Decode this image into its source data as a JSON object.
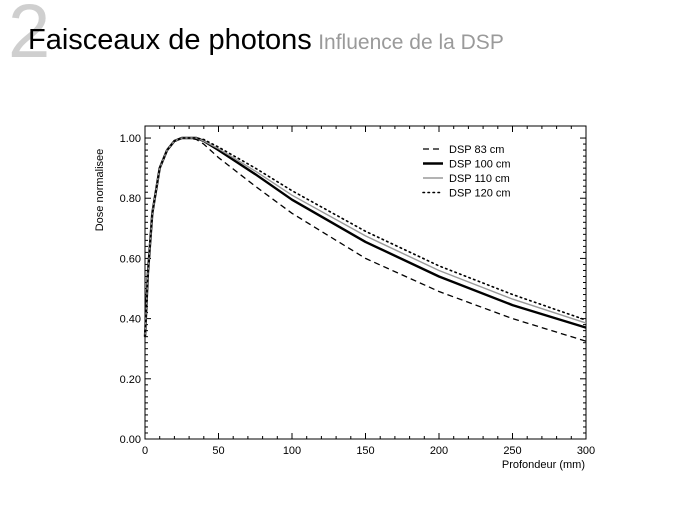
{
  "slide": {
    "number": "2",
    "title": "Faisceaux de photons",
    "subtitle": "Influence de la DSP"
  },
  "chart_data": {
    "type": "line",
    "xlabel": "Profondeur (mm)",
    "ylabel": "Dose normalisee",
    "xlim": [
      0,
      300
    ],
    "ylim": [
      0,
      1.04
    ],
    "x_ticks": [
      "0",
      "50",
      "100",
      "150",
      "200",
      "250",
      "300"
    ],
    "y_ticks": [
      "0.00",
      "0.20",
      "0.40",
      "0.60",
      "0.80",
      "1.00"
    ],
    "grid": false,
    "legend_position": "top-right",
    "series": [
      {
        "name": "DSP 83 cm",
        "style": "dashed",
        "color": "#000000",
        "x": [
          0,
          2,
          5,
          10,
          15,
          20,
          25,
          30,
          35,
          40,
          50,
          75,
          100,
          150,
          200,
          250,
          300
        ],
        "y": [
          0.34,
          0.55,
          0.75,
          0.9,
          0.96,
          0.99,
          1.0,
          1.0,
          0.995,
          0.98,
          0.935,
          0.84,
          0.75,
          0.6,
          0.49,
          0.4,
          0.325
        ]
      },
      {
        "name": "DSP 100 cm",
        "style": "solid-bold",
        "color": "#000000",
        "x": [
          0,
          2,
          5,
          10,
          15,
          20,
          25,
          30,
          35,
          40,
          50,
          75,
          100,
          150,
          200,
          250,
          300
        ],
        "y": [
          0.34,
          0.55,
          0.75,
          0.9,
          0.96,
          0.99,
          1.0,
          1.0,
          1.0,
          0.99,
          0.96,
          0.88,
          0.795,
          0.655,
          0.54,
          0.445,
          0.37
        ]
      },
      {
        "name": "DSP 110 cm",
        "style": "solid-gray",
        "color": "#9a9a9a",
        "x": [
          0,
          2,
          5,
          10,
          15,
          20,
          25,
          30,
          35,
          40,
          50,
          75,
          100,
          150,
          200,
          250,
          300
        ],
        "y": [
          0.34,
          0.55,
          0.75,
          0.9,
          0.96,
          0.99,
          1.0,
          1.0,
          1.0,
          0.99,
          0.965,
          0.89,
          0.81,
          0.675,
          0.56,
          0.465,
          0.385
        ]
      },
      {
        "name": "DSP 120 cm",
        "style": "dotted",
        "color": "#000000",
        "x": [
          0,
          2,
          5,
          10,
          15,
          20,
          25,
          30,
          35,
          40,
          50,
          75,
          100,
          150,
          200,
          250,
          300
        ],
        "y": [
          0.34,
          0.55,
          0.75,
          0.9,
          0.96,
          0.99,
          1.0,
          1.0,
          1.0,
          0.995,
          0.97,
          0.9,
          0.825,
          0.69,
          0.575,
          0.48,
          0.395
        ]
      }
    ]
  }
}
